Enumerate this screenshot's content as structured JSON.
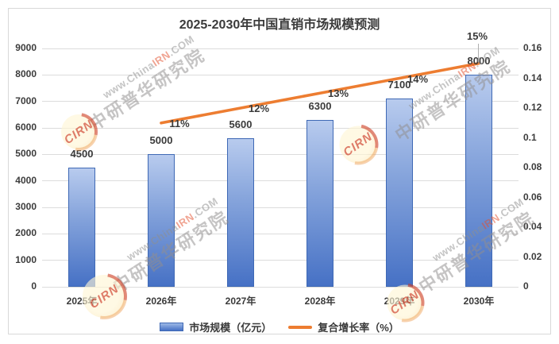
{
  "title": "2025-2030年中国直销市场规模预测",
  "chart_data": {
    "type": "bar",
    "title": "2025-2030年中国直销市场规模预测",
    "categories": [
      "2025年",
      "2026年",
      "2027年",
      "2028年",
      "2029年",
      "2030年"
    ],
    "series": [
      {
        "name": "市场规模（亿元）",
        "type": "bar",
        "axis": "left",
        "values": [
          4500,
          5000,
          5600,
          6300,
          7100,
          8000
        ],
        "labels": [
          "4500",
          "5000",
          "5600",
          "6300",
          "7100",
          "8000"
        ],
        "color": "#4472c4"
      },
      {
        "name": "复合增长率（%）",
        "type": "line",
        "axis": "right",
        "values": [
          null,
          0.11,
          0.12,
          0.13,
          0.14,
          0.15
        ],
        "labels": [
          "",
          "11%",
          "12%",
          "13%",
          "14%",
          "15%"
        ],
        "color": "#ed7d31"
      }
    ],
    "left_axis": {
      "min": 0,
      "max": 9000,
      "step": 1000,
      "tick_labels": [
        "0",
        "1000",
        "2000",
        "3000",
        "4000",
        "5000",
        "6000",
        "7000",
        "8000",
        "9000"
      ]
    },
    "right_axis": {
      "min": 0,
      "max": 0.16,
      "step": 0.02,
      "tick_labels": [
        "0",
        "0.02",
        "0.04",
        "0.06",
        "0.08",
        "0.1",
        "0.12",
        "0.14",
        "0.16"
      ]
    },
    "grid": true,
    "legend_position": "bottom"
  },
  "legend": {
    "bar_label": "市场规模（亿元）",
    "line_label": "复合增长率（%）"
  },
  "watermark": {
    "url_prefix": "www.China",
    "url_highlight": "IRN",
    "url_suffix": ".COM",
    "brand": "中研普华研究院",
    "stamp": "CIRN"
  },
  "colors": {
    "bar_fill_top": "#b8cbee",
    "bar_fill_bottom": "#4671c5",
    "bar_border": "#3f69b5",
    "line": "#ed7d31",
    "grid": "#dcdcdc",
    "text": "#3a3a3a"
  }
}
